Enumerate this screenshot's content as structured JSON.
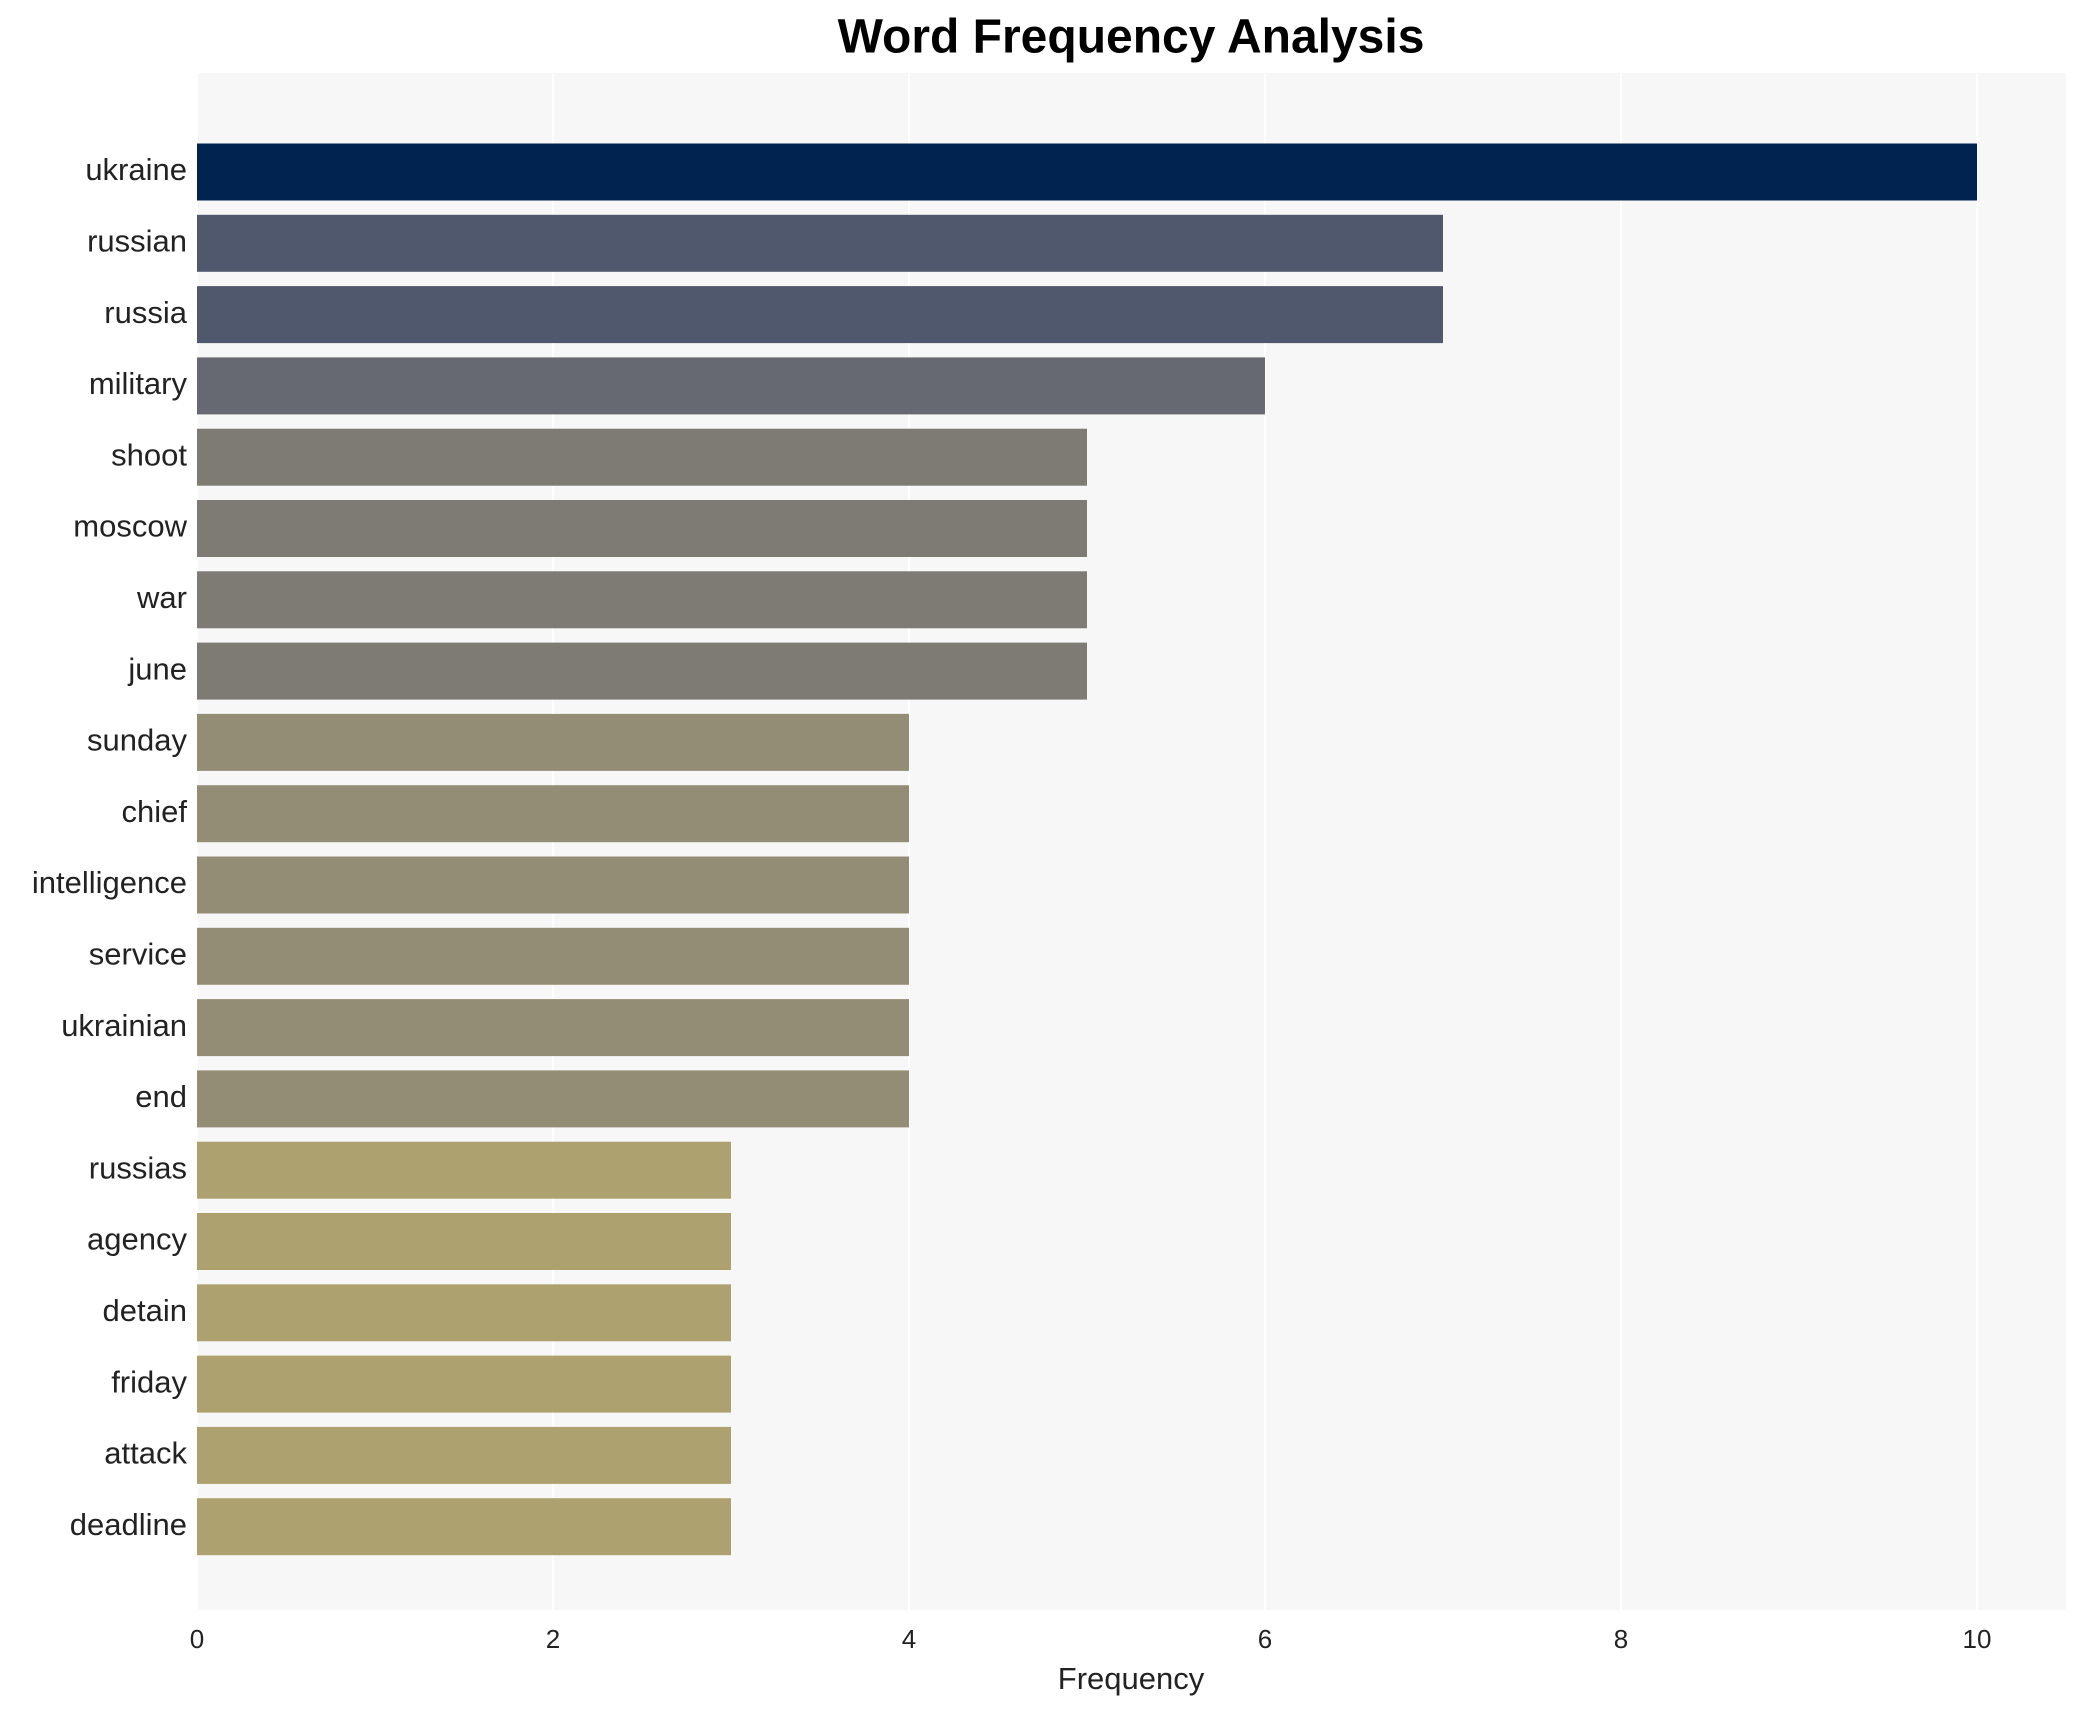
{
  "chart_data": {
    "type": "bar",
    "orientation": "horizontal",
    "title": "Word Frequency Analysis",
    "x_label": "Frequency",
    "categories": [
      "ukraine",
      "russian",
      "russia",
      "military",
      "shoot",
      "moscow",
      "war",
      "june",
      "sunday",
      "chief",
      "intelligence",
      "service",
      "ukrainian",
      "end",
      "russias",
      "agency",
      "detain",
      "friday",
      "attack",
      "deadline"
    ],
    "values": [
      10,
      7,
      7,
      6,
      5,
      5,
      5,
      5,
      4,
      4,
      4,
      4,
      4,
      4,
      3,
      3,
      3,
      3,
      3,
      3
    ],
    "colors": [
      "#00234f",
      "#4f586d",
      "#4f586d",
      "#666971",
      "#7d7b74",
      "#7d7b74",
      "#7d7b74",
      "#7d7b74",
      "#948d75",
      "#948d75",
      "#948d75",
      "#948d75",
      "#948d75",
      "#948d75",
      "#ada26f",
      "#ada26f",
      "#ada26f",
      "#ada26f",
      "#ada26f",
      "#ada26f"
    ],
    "xlim": [
      0,
      10.5
    ],
    "xticks": [
      0,
      2,
      4,
      6,
      8,
      10
    ],
    "grid": true
  }
}
